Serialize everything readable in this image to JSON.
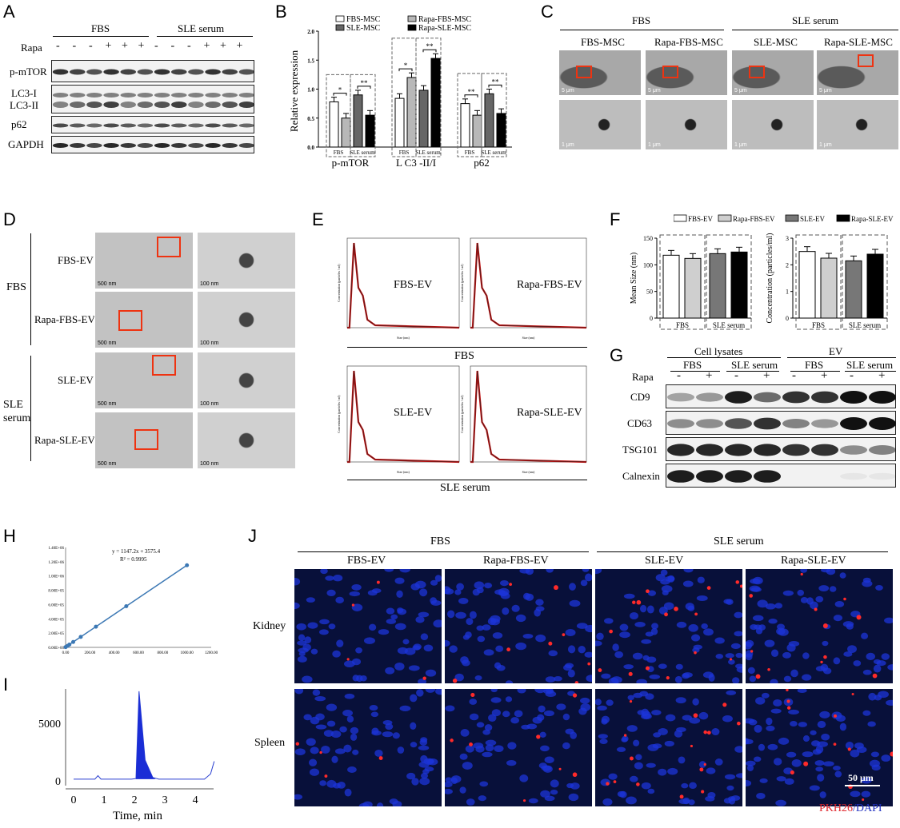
{
  "panels": {
    "A": "A",
    "B": "B",
    "C": "C",
    "D": "D",
    "E": "E",
    "F": "F",
    "G": "G",
    "H": "H",
    "I": "I",
    "J": "J"
  },
  "A": {
    "groups": [
      "FBS",
      "SLE serum"
    ],
    "rapa_label": "Rapa",
    "rapa_signs": [
      "-",
      "-",
      "-",
      "+",
      "+",
      "+",
      "-",
      "-",
      "-",
      "+",
      "+",
      "+"
    ],
    "bands": [
      "p-mTOR",
      "LC3-I",
      "LC3-II",
      "p62",
      "GAPDH"
    ]
  },
  "B": {
    "legend": [
      "FBS-MSC",
      "Rapa-FBS-MSC",
      "SLE-MSC",
      "Rapa-SLE-MSC"
    ],
    "ylabel": "Relative expression",
    "groups": [
      "p-mTOR",
      "L C3 -II/I",
      "p62"
    ],
    "sub": [
      "FBS",
      "SLE serum"
    ],
    "colors": [
      "#ffffff",
      "#b8b8b8",
      "#666666",
      "#000000"
    ],
    "sig": [
      "*",
      "**",
      "*",
      "**",
      "**",
      "**"
    ]
  },
  "chart_data": {
    "type": "bar",
    "categories": [
      "p-mTOR",
      "L C3 -II/I",
      "p62"
    ],
    "series": [
      {
        "name": "FBS-MSC",
        "values": [
          0.78,
          0.84,
          0.75
        ]
      },
      {
        "name": "Rapa-FBS-MSC",
        "values": [
          0.5,
          1.2,
          0.55
        ]
      },
      {
        "name": "SLE-MSC",
        "values": [
          0.9,
          0.98,
          0.92
        ]
      },
      {
        "name": "Rapa-SLE-MSC",
        "values": [
          0.55,
          1.53,
          0.58
        ]
      }
    ],
    "ylabel": "Relative expression",
    "ylim": [
      0,
      2.0
    ],
    "yticks": [
      "0.0",
      "0.5",
      "1.0",
      "1.5",
      "2.0"
    ]
  },
  "C": {
    "groups": [
      "FBS",
      "SLE serum"
    ],
    "cols": [
      "FBS-MSC",
      "Rapa-FBS-MSC",
      "SLE-MSC",
      "Rapa-SLE-MSC"
    ],
    "scale_top": "5 μm",
    "scale_bottom": "1 μm"
  },
  "D": {
    "groups": [
      "FBS",
      "SLE serum"
    ],
    "rows": [
      "FBS-EV",
      "Rapa-FBS-EV",
      "SLE-EV",
      "Rapa-SLE-EV"
    ],
    "scale_left": "500 nm",
    "scale_right": "100 nm"
  },
  "E": {
    "plots": [
      "FBS-EV",
      "Rapa-FBS-EV",
      "SLE-EV",
      "Rapa-SLE-EV"
    ],
    "groups": [
      "FBS",
      "SLE serum"
    ],
    "xlabel": "Size (nm)",
    "ylabel": "Concentration (particles / ml)"
  },
  "F": {
    "legend": [
      "FBS-EV",
      "Rapa-FBS-EV",
      "SLE-EV",
      "Rapa-SLE-EV"
    ],
    "ylabel_left": "Mean Size (nm)",
    "ylabel_right": "Concentration (particles/ml)",
    "sub": [
      "FBS",
      "SLE serum"
    ],
    "size_values": [
      118,
      112,
      121,
      124
    ],
    "size_ylim": [
      0,
      150
    ],
    "size_ticks": [
      "0",
      "50",
      "100",
      "150"
    ],
    "conc_values": [
      2.5,
      2.25,
      2.15,
      2.4
    ],
    "conc_ylim": [
      0,
      3
    ],
    "conc_ticks": [
      "0",
      "1",
      "2",
      "3"
    ]
  },
  "G": {
    "top": [
      "Cell lysates",
      "EV"
    ],
    "groups": [
      "FBS",
      "SLE serum",
      "FBS",
      "SLE serum"
    ],
    "rapa_label": "Rapa",
    "signs": [
      "-",
      "+",
      "-",
      "+",
      "-",
      "+",
      "-",
      "+"
    ],
    "bands": [
      "CD9",
      "CD63",
      "TSG101",
      "Calnexin"
    ]
  },
  "H": {
    "equation": "y = 1147.2x + 3575.4",
    "r2": "R² = 0.9995",
    "yticks": [
      "0.00E+00",
      "2.00E+05",
      "4.00E+05",
      "6.00E+05",
      "8.00E+05",
      "1.00E+06",
      "1.20E+06",
      "1.40E+06"
    ],
    "xticks": [
      "0.00",
      "200.00",
      "400.00",
      "600.00",
      "800.00",
      "1000.00",
      "1200.00"
    ],
    "x": [
      0,
      15.6,
      31.25,
      62.5,
      125,
      250,
      500,
      1000
    ],
    "y": [
      3575,
      21500,
      39400,
      75300,
      147000,
      290400,
      577200,
      1150800
    ]
  },
  "I": {
    "yticks": [
      "0",
      "5000"
    ],
    "xticks": [
      "0",
      "1",
      "2",
      "3",
      "4"
    ],
    "xlabel": "Time, min"
  },
  "J": {
    "groups": [
      "FBS",
      "SLE serum"
    ],
    "cols": [
      "FBS-EV",
      "Rapa-FBS-EV",
      "SLE-EV",
      "Rapa-SLE-EV"
    ],
    "rows": [
      "Kidney",
      "Spleen"
    ],
    "scale": "50 μm",
    "stain1": "PKH26",
    "stain2": "/DAPI"
  }
}
